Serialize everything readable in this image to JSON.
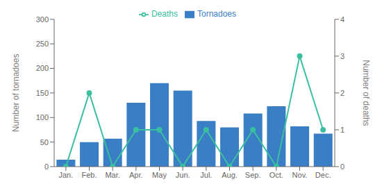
{
  "chart_data": {
    "type": "bar",
    "categories": [
      "Jan.",
      "Feb.",
      "Mar.",
      "Apr.",
      "May",
      "Jun.",
      "Jul.",
      "Aug.",
      "Sep.",
      "Oct.",
      "Nov.",
      "Dec."
    ],
    "series": [
      {
        "name": "Tornadoes",
        "type": "bar",
        "color": "#3A7EC6",
        "values": [
          14,
          50,
          57,
          130,
          170,
          155,
          93,
          80,
          108,
          123,
          82,
          67
        ]
      },
      {
        "name": "Deaths",
        "type": "line",
        "color": "#3ABFA0",
        "marker": "circle",
        "axis": "y2",
        "values": [
          0,
          2,
          0,
          1,
          1,
          0,
          1,
          0,
          1,
          0,
          3,
          1
        ]
      }
    ],
    "ylabel": "Number of tornadoes",
    "y2label": "Number of deaths",
    "ylim": [
      0,
      300
    ],
    "yticks": [
      0,
      50,
      100,
      150,
      200,
      250,
      300
    ],
    "y2lim": [
      0,
      4
    ],
    "y2ticks": [
      0,
      1,
      2,
      3,
      4
    ],
    "legend": "top",
    "grid": false
  }
}
